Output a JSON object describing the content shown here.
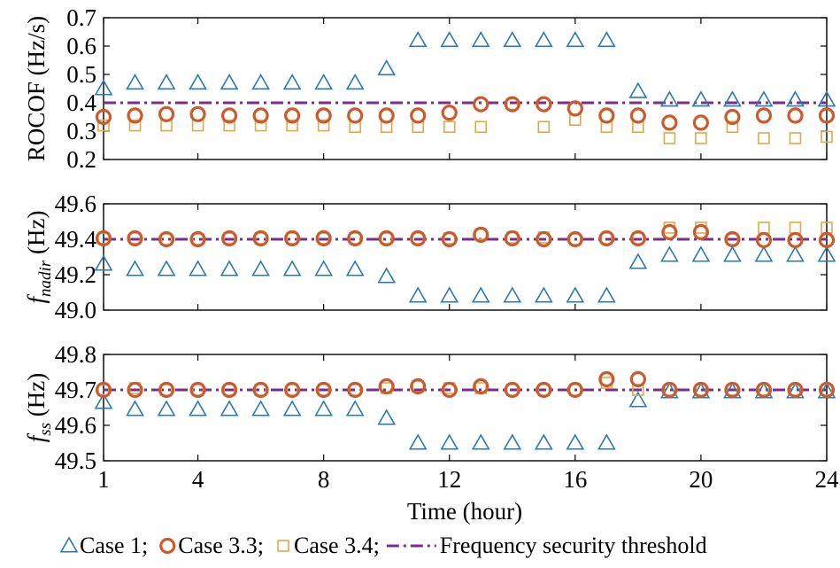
{
  "colors": {
    "case1": "#2a7ab0",
    "case33": "#cc5a2a",
    "case34": "#e0a848",
    "threshold": "#7b2d8e"
  },
  "chart_data": {
    "type": "scatter",
    "x": [
      1,
      2,
      3,
      4,
      5,
      6,
      7,
      8,
      9,
      10,
      11,
      12,
      13,
      14,
      15,
      16,
      17,
      18,
      19,
      20,
      21,
      22,
      23,
      24
    ],
    "xticks": [
      1,
      4,
      8,
      12,
      16,
      20,
      24
    ],
    "xlabel": "Time (hour)",
    "legend": {
      "placement": "bottom",
      "items": [
        {
          "key": "case1",
          "label": "Case 1;"
        },
        {
          "key": "case33",
          "label": "Case 3.3;"
        },
        {
          "key": "case34",
          "label": "Case 3.4;"
        },
        {
          "key": "threshold",
          "label": "Frequency security threshold"
        }
      ]
    },
    "panels": [
      {
        "ylabel": "ROCOF (Hz/s)",
        "ylim": [
          0.2,
          0.7
        ],
        "yticks": [
          "0.2",
          "0.3",
          "0.4",
          "0.5",
          "0.6",
          "0.7"
        ],
        "threshold": 0.4,
        "series": {
          "case1": [
            0.45,
            0.47,
            0.47,
            0.47,
            0.47,
            0.47,
            0.47,
            0.47,
            0.47,
            0.52,
            0.62,
            0.62,
            0.62,
            0.62,
            0.62,
            0.62,
            0.62,
            0.44,
            0.41,
            0.41,
            0.41,
            0.41,
            0.41,
            0.41
          ],
          "case33": [
            0.35,
            0.355,
            0.36,
            0.36,
            0.355,
            0.355,
            0.355,
            0.355,
            0.355,
            0.355,
            0.355,
            0.365,
            0.395,
            0.395,
            0.395,
            0.38,
            0.355,
            0.355,
            0.33,
            0.33,
            0.35,
            0.355,
            0.355,
            0.355
          ],
          "case34": [
            0.32,
            0.32,
            0.32,
            0.32,
            0.32,
            0.32,
            0.32,
            0.32,
            0.315,
            0.315,
            0.315,
            0.315,
            0.315,
            0.395,
            0.315,
            0.34,
            0.315,
            0.315,
            0.275,
            0.275,
            0.315,
            0.275,
            0.275,
            0.28
          ]
        }
      },
      {
        "ylabel_main": "f",
        "ylabel_sub": "nadir",
        "ylabel_unit": "(Hz)",
        "ylim": [
          49.0,
          49.6
        ],
        "yticks": [
          "49.0",
          "49.2",
          "49.4",
          "49.6"
        ],
        "threshold": 49.4,
        "series": {
          "case1": [
            49.26,
            49.23,
            49.23,
            49.23,
            49.23,
            49.23,
            49.23,
            49.23,
            49.23,
            49.19,
            49.08,
            49.08,
            49.08,
            49.08,
            49.08,
            49.08,
            49.08,
            49.27,
            49.31,
            49.31,
            49.31,
            49.31,
            49.31,
            49.31
          ],
          "case33": [
            49.405,
            49.405,
            49.4,
            49.4,
            49.405,
            49.405,
            49.405,
            49.405,
            49.405,
            49.405,
            49.405,
            49.4,
            49.425,
            49.405,
            49.4,
            49.4,
            49.405,
            49.405,
            49.44,
            49.44,
            49.4,
            49.395,
            49.395,
            49.395
          ],
          "case34": [
            49.405,
            49.405,
            49.4,
            49.4,
            49.405,
            49.405,
            49.405,
            49.405,
            49.405,
            49.405,
            49.405,
            49.405,
            49.43,
            49.41,
            49.41,
            49.4,
            49.405,
            49.405,
            49.465,
            49.465,
            49.4,
            49.465,
            49.465,
            49.465
          ]
        }
      },
      {
        "ylabel_main": "f",
        "ylabel_sub": "ss",
        "ylabel_unit": "(Hz)",
        "ylim": [
          49.5,
          49.8
        ],
        "yticks": [
          "49.5",
          "49.6",
          "49.7",
          "49.8"
        ],
        "threshold": 49.7,
        "series": {
          "case1": [
            49.665,
            49.645,
            49.645,
            49.645,
            49.645,
            49.645,
            49.645,
            49.645,
            49.645,
            49.62,
            49.55,
            49.55,
            49.55,
            49.55,
            49.55,
            49.55,
            49.55,
            49.67,
            49.695,
            49.695,
            49.695,
            49.695,
            49.695,
            49.695
          ],
          "case33": [
            49.7,
            49.7,
            49.7,
            49.7,
            49.7,
            49.7,
            49.7,
            49.7,
            49.7,
            49.71,
            49.71,
            49.7,
            49.71,
            49.7,
            49.7,
            49.7,
            49.73,
            49.73,
            49.7,
            49.7,
            49.7,
            49.7,
            49.7,
            49.7
          ],
          "case34": [
            49.7,
            49.705,
            49.7,
            49.7,
            49.7,
            49.7,
            49.7,
            49.7,
            49.7,
            49.705,
            49.71,
            49.705,
            49.705,
            49.7,
            49.7,
            49.7,
            49.72,
            49.7,
            49.7,
            49.7,
            49.7,
            49.7,
            49.7,
            49.7
          ]
        }
      }
    ]
  }
}
